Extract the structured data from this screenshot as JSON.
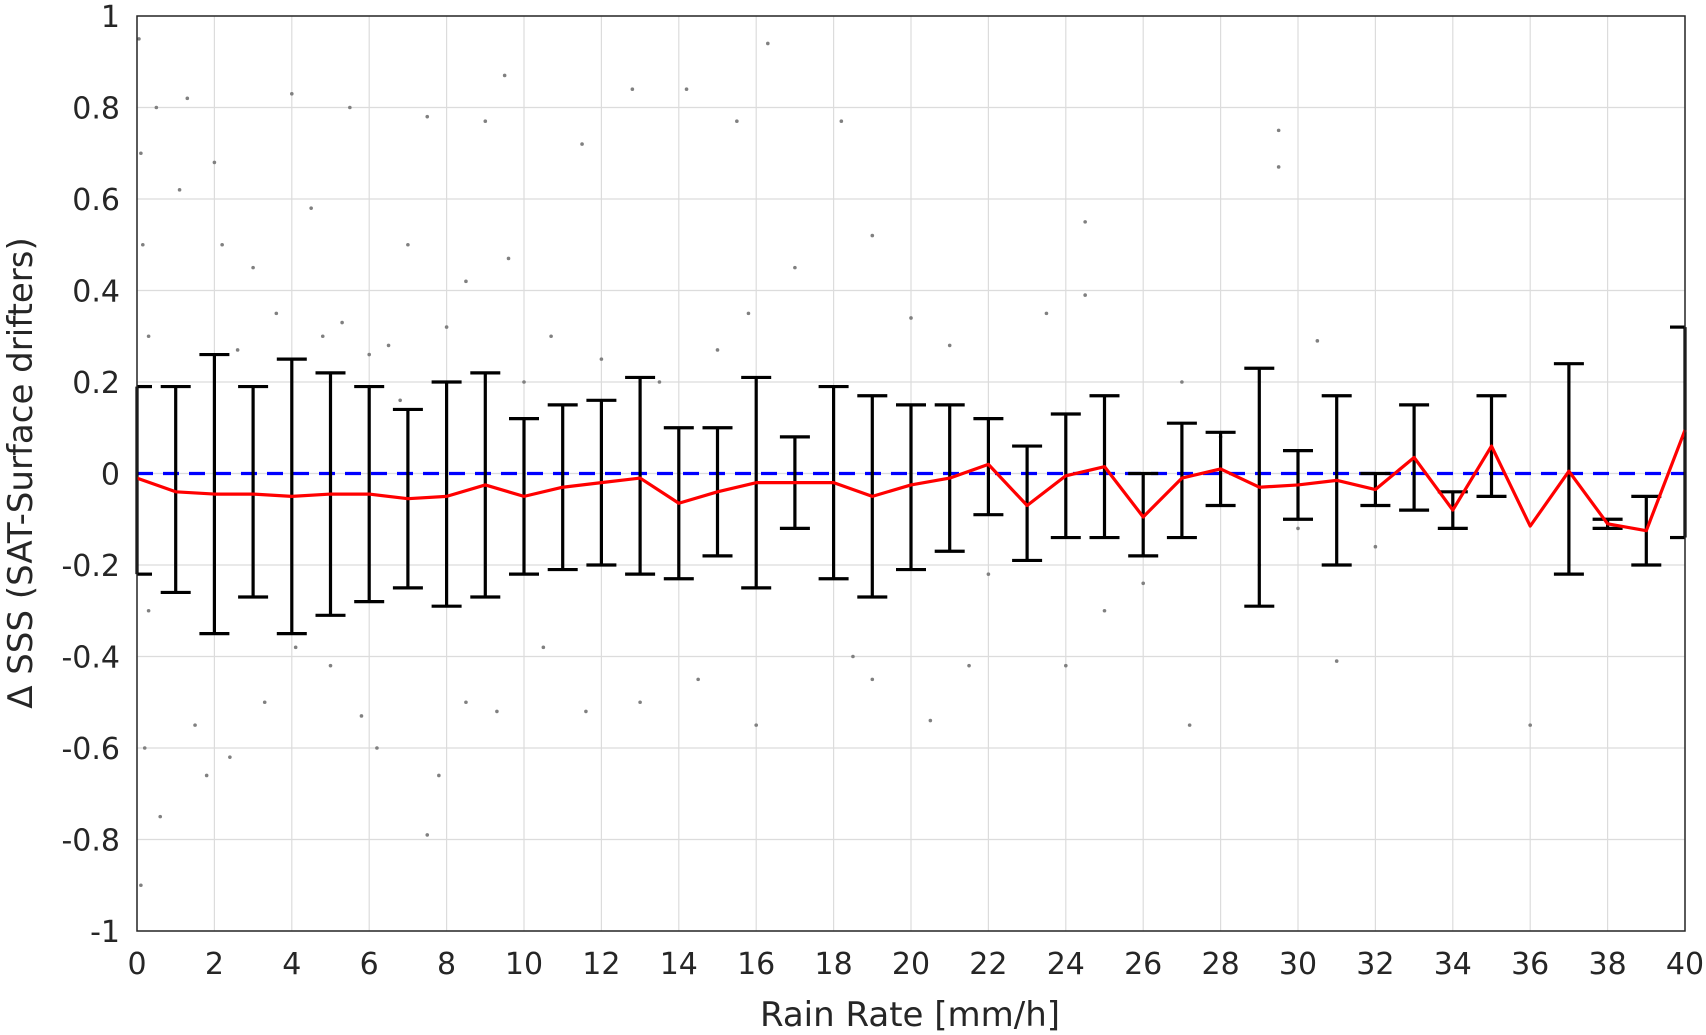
{
  "chart_data": {
    "type": "scatter",
    "xlabel": "Rain Rate [mm/h]",
    "ylabel": "Δ SSS (SAT-Surface drifters)",
    "xlim": [
      0,
      40
    ],
    "ylim": [
      -1,
      1
    ],
    "xticks": [
      "0",
      "2",
      "4",
      "6",
      "8",
      "10",
      "12",
      "14",
      "16",
      "18",
      "20",
      "22",
      "24",
      "26",
      "28",
      "30",
      "32",
      "34",
      "36",
      "38",
      "40"
    ],
    "yticks": [
      "-1",
      "-0.8",
      "-0.6",
      "-0.4",
      "-0.2",
      "0",
      "0.2",
      "0.4",
      "0.6",
      "0.8",
      "1"
    ],
    "grid": true,
    "legend": "none",
    "scatter_note_color": "#808080",
    "series": [
      {
        "kind": "scatter",
        "color": "#808080",
        "points": [
          [
            0.05,
            0.95
          ],
          [
            0.1,
            0.7
          ],
          [
            0.1,
            -0.9
          ],
          [
            0.15,
            0.5
          ],
          [
            0.2,
            -0.6
          ],
          [
            0.3,
            0.3
          ],
          [
            0.3,
            -0.3
          ],
          [
            0.5,
            0.8
          ],
          [
            0.6,
            -0.75
          ],
          [
            1.1,
            0.62
          ],
          [
            1.3,
            0.82
          ],
          [
            1.5,
            -0.55
          ],
          [
            1.8,
            -0.66
          ],
          [
            2.0,
            0.68
          ],
          [
            2.2,
            0.5
          ],
          [
            2.4,
            -0.62
          ],
          [
            2.6,
            0.27
          ],
          [
            3.0,
            0.45
          ],
          [
            3.3,
            -0.5
          ],
          [
            3.6,
            0.35
          ],
          [
            4.0,
            0.83
          ],
          [
            4.1,
            -0.38
          ],
          [
            4.5,
            0.58
          ],
          [
            4.8,
            0.3
          ],
          [
            5.0,
            -0.42
          ],
          [
            5.3,
            0.33
          ],
          [
            5.5,
            0.8
          ],
          [
            5.8,
            -0.53
          ],
          [
            6.0,
            0.26
          ],
          [
            6.2,
            -0.6
          ],
          [
            6.5,
            0.28
          ],
          [
            6.8,
            0.16
          ],
          [
            7.0,
            0.5
          ],
          [
            7.5,
            0.78
          ],
          [
            7.5,
            -0.79
          ],
          [
            7.8,
            -0.66
          ],
          [
            8.0,
            0.32
          ],
          [
            8.5,
            0.42
          ],
          [
            8.5,
            -0.5
          ],
          [
            9.0,
            0.77
          ],
          [
            9.3,
            -0.52
          ],
          [
            9.5,
            0.87
          ],
          [
            9.6,
            0.47
          ],
          [
            10.0,
            0.2
          ],
          [
            10.5,
            -0.38
          ],
          [
            10.7,
            0.3
          ],
          [
            11.5,
            0.72
          ],
          [
            11.6,
            -0.52
          ],
          [
            12.0,
            0.25
          ],
          [
            12.8,
            0.84
          ],
          [
            13.0,
            -0.5
          ],
          [
            13.5,
            0.2
          ],
          [
            14.2,
            0.84
          ],
          [
            14.5,
            -0.45
          ],
          [
            15.0,
            0.27
          ],
          [
            15.5,
            0.77
          ],
          [
            15.8,
            0.35
          ],
          [
            16.0,
            -0.55
          ],
          [
            16.3,
            0.94
          ],
          [
            17.0,
            0.45
          ],
          [
            18.2,
            0.77
          ],
          [
            18.5,
            -0.4
          ],
          [
            19.0,
            0.52
          ],
          [
            19.0,
            -0.45
          ],
          [
            20.0,
            0.34
          ],
          [
            20.5,
            -0.54
          ],
          [
            21.0,
            0.28
          ],
          [
            21.5,
            -0.42
          ],
          [
            22.0,
            -0.22
          ],
          [
            23.5,
            0.35
          ],
          [
            24.0,
            -0.42
          ],
          [
            24.5,
            0.55
          ],
          [
            24.5,
            0.39
          ],
          [
            25.0,
            -0.3
          ],
          [
            26.0,
            -0.24
          ],
          [
            27.0,
            0.2
          ],
          [
            27.2,
            -0.55
          ],
          [
            28.0,
            0.08
          ],
          [
            29.0,
            -0.2
          ],
          [
            29.5,
            0.75
          ],
          [
            29.5,
            0.67
          ],
          [
            30.0,
            -0.12
          ],
          [
            30.5,
            0.29
          ],
          [
            31.0,
            -0.41
          ],
          [
            32.0,
            -0.16
          ],
          [
            36.0,
            -0.55
          ]
        ]
      },
      {
        "kind": "errorbar",
        "color": "#000000",
        "points": [
          {
            "x": 0,
            "lo": -0.22,
            "hi": 0.19
          },
          {
            "x": 1,
            "lo": -0.26,
            "hi": 0.19
          },
          {
            "x": 2,
            "lo": -0.35,
            "hi": 0.26
          },
          {
            "x": 3,
            "lo": -0.27,
            "hi": 0.19
          },
          {
            "x": 4,
            "lo": -0.35,
            "hi": 0.25
          },
          {
            "x": 5,
            "lo": -0.31,
            "hi": 0.22
          },
          {
            "x": 6,
            "lo": -0.28,
            "hi": 0.19
          },
          {
            "x": 7,
            "lo": -0.25,
            "hi": 0.14
          },
          {
            "x": 8,
            "lo": -0.29,
            "hi": 0.2
          },
          {
            "x": 9,
            "lo": -0.27,
            "hi": 0.22
          },
          {
            "x": 10,
            "lo": -0.22,
            "hi": 0.12
          },
          {
            "x": 11,
            "lo": -0.21,
            "hi": 0.15
          },
          {
            "x": 12,
            "lo": -0.2,
            "hi": 0.16
          },
          {
            "x": 13,
            "lo": -0.22,
            "hi": 0.21
          },
          {
            "x": 14,
            "lo": -0.23,
            "hi": 0.1
          },
          {
            "x": 15,
            "lo": -0.18,
            "hi": 0.1
          },
          {
            "x": 16,
            "lo": -0.25,
            "hi": 0.21
          },
          {
            "x": 17,
            "lo": -0.12,
            "hi": 0.08
          },
          {
            "x": 18,
            "lo": -0.23,
            "hi": 0.19
          },
          {
            "x": 19,
            "lo": -0.27,
            "hi": 0.17
          },
          {
            "x": 20,
            "lo": -0.21,
            "hi": 0.15
          },
          {
            "x": 21,
            "lo": -0.17,
            "hi": 0.15
          },
          {
            "x": 22,
            "lo": -0.09,
            "hi": 0.12
          },
          {
            "x": 23,
            "lo": -0.19,
            "hi": 0.06
          },
          {
            "x": 24,
            "lo": -0.14,
            "hi": 0.13
          },
          {
            "x": 25,
            "lo": -0.14,
            "hi": 0.17
          },
          {
            "x": 26,
            "lo": -0.18,
            "hi": 0.0
          },
          {
            "x": 27,
            "lo": -0.14,
            "hi": 0.11
          },
          {
            "x": 28,
            "lo": -0.07,
            "hi": 0.09
          },
          {
            "x": 29,
            "lo": -0.29,
            "hi": 0.23
          },
          {
            "x": 30,
            "lo": -0.1,
            "hi": 0.05
          },
          {
            "x": 31,
            "lo": -0.2,
            "hi": 0.17
          },
          {
            "x": 32,
            "lo": -0.07,
            "hi": 0.0
          },
          {
            "x": 33,
            "lo": -0.08,
            "hi": 0.15
          },
          {
            "x": 34,
            "lo": -0.12,
            "hi": -0.04
          },
          {
            "x": 35,
            "lo": -0.05,
            "hi": 0.17
          },
          {
            "x": 37,
            "lo": -0.22,
            "hi": 0.24
          },
          {
            "x": 38,
            "lo": -0.12,
            "hi": -0.1
          },
          {
            "x": 39,
            "lo": -0.2,
            "hi": -0.05
          },
          {
            "x": 40,
            "lo": -0.14,
            "hi": 0.32
          }
        ]
      },
      {
        "kind": "line",
        "color": "#ff0000",
        "x": [
          0,
          1,
          2,
          3,
          4,
          5,
          6,
          7,
          8,
          9,
          10,
          11,
          12,
          13,
          14,
          15,
          16,
          17,
          18,
          19,
          20,
          21,
          22,
          23,
          24,
          25,
          26,
          27,
          28,
          29,
          30,
          31,
          32,
          33,
          34,
          35,
          36,
          37,
          38,
          39,
          40
        ],
        "y": [
          -0.01,
          -0.04,
          -0.045,
          -0.045,
          -0.05,
          -0.045,
          -0.045,
          -0.055,
          -0.05,
          -0.025,
          -0.05,
          -0.03,
          -0.02,
          -0.01,
          -0.065,
          -0.04,
          -0.02,
          -0.02,
          -0.02,
          -0.05,
          -0.025,
          -0.01,
          0.02,
          -0.07,
          -0.005,
          0.015,
          -0.095,
          -0.01,
          0.01,
          -0.03,
          -0.025,
          -0.015,
          -0.035,
          0.035,
          -0.08,
          0.06,
          -0.115,
          0.005,
          -0.11,
          -0.125,
          0.095
        ]
      },
      {
        "kind": "reference-line",
        "color": "#0000ff",
        "y": 0,
        "style": "dashed"
      }
    ]
  }
}
